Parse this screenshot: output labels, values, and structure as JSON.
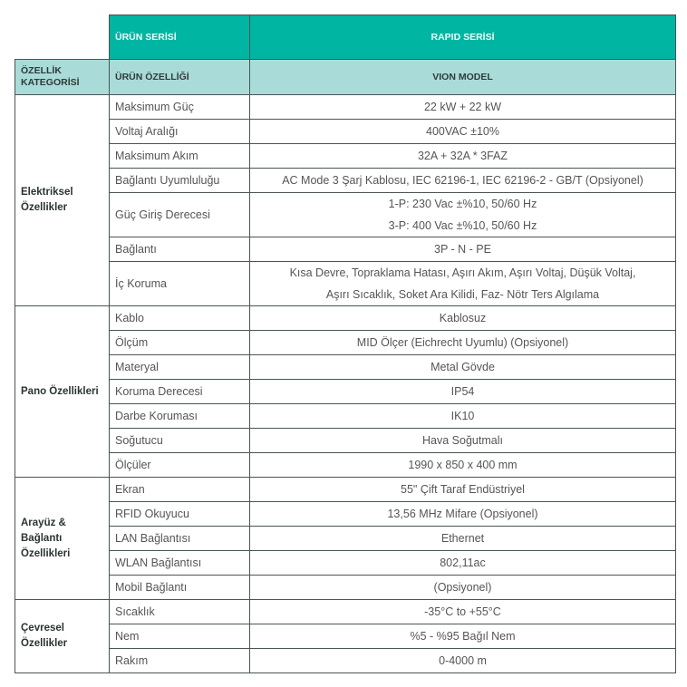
{
  "header": {
    "series_label": "ÜRÜN SERİSİ",
    "series_value": "RAPID SERİSİ",
    "category_label": "ÖZELLİK KATEGORİSİ",
    "feature_label": "ÜRÜN ÖZELLİĞİ",
    "model_label": "VION MODEL"
  },
  "groups": [
    {
      "category": "Elektriksel Özellikler",
      "rows": [
        {
          "feature": "Maksimum Güç",
          "value": [
            "22 kW + 22 kW"
          ]
        },
        {
          "feature": "Voltaj Aralığı",
          "value": [
            "400VAC ±10%"
          ]
        },
        {
          "feature": "Maksimum Akım",
          "value": [
            "32A + 32A * 3FAZ"
          ]
        },
        {
          "feature": "Bağlantı Uyumluluğu",
          "value": [
            "AC Mode 3 Şarj Kablosu, IEC 62196-1, IEC 62196-2 - GB/T (Opsiyonel)"
          ]
        },
        {
          "feature": "Güç Giriş Derecesi",
          "value": [
            "1-P: 230 Vac ±%10, 50/60 Hz",
            "3-P: 400 Vac ±%10, 50/60 Hz"
          ]
        },
        {
          "feature": "Bağlantı",
          "value": [
            "3P - N - PE"
          ]
        },
        {
          "feature": "İç Koruma",
          "value": [
            "Kısa Devre, Topraklama Hatası, Aşırı Akım, Aşırı Voltaj, Düşük Voltaj,",
            "Aşırı Sıcaklık, Soket Ara Kilidi, Faz- Nötr Ters Algılama"
          ]
        }
      ]
    },
    {
      "category": "Pano Özellikleri",
      "rows": [
        {
          "feature": "Kablo",
          "value": [
            "Kablosuz"
          ]
        },
        {
          "feature": "Ölçüm",
          "value": [
            "MID Ölçer (Eichrecht Uyumlu) (Opsiyonel)"
          ]
        },
        {
          "feature": "Materyal",
          "value": [
            "Metal Gövde"
          ]
        },
        {
          "feature": "Koruma Derecesi",
          "value": [
            "IP54"
          ]
        },
        {
          "feature": "Darbe Koruması",
          "value": [
            "IK10"
          ]
        },
        {
          "feature": "Soğutucu",
          "value": [
            "Hava Soğutmalı"
          ]
        },
        {
          "feature": "Ölçüler",
          "value": [
            "1990 x 850 x 400 mm"
          ]
        }
      ]
    },
    {
      "category": "Arayüz & Bağlantı Özellikleri",
      "rows": [
        {
          "feature": "Ekran",
          "value": [
            "55\" Çift Taraf Endüstriyel"
          ]
        },
        {
          "feature": "RFID Okuyucu",
          "value": [
            "13,56 MHz Mifare (Opsiyonel)"
          ]
        },
        {
          "feature": "LAN Bağlantısı",
          "value": [
            "Ethernet"
          ]
        },
        {
          "feature": "WLAN Bağlantısı",
          "value": [
            "802,11ac"
          ]
        },
        {
          "feature": "Mobil Bağlantı",
          "value": [
            "(Opsiyonel)"
          ]
        }
      ]
    },
    {
      "category": "Çevresel Özellikler",
      "rows": [
        {
          "feature": "Sıcaklık",
          "value": [
            "-35°C to +55°C"
          ]
        },
        {
          "feature": "Nem",
          "value": [
            "%5 - %95 Bağıl Nem"
          ]
        },
        {
          "feature": "Rakım",
          "value": [
            "0-4000 m"
          ]
        }
      ]
    }
  ],
  "colors": {
    "header_teal": "#00b5a1",
    "subheader_teal": "#a9dcd8",
    "border": "#4a5556"
  }
}
